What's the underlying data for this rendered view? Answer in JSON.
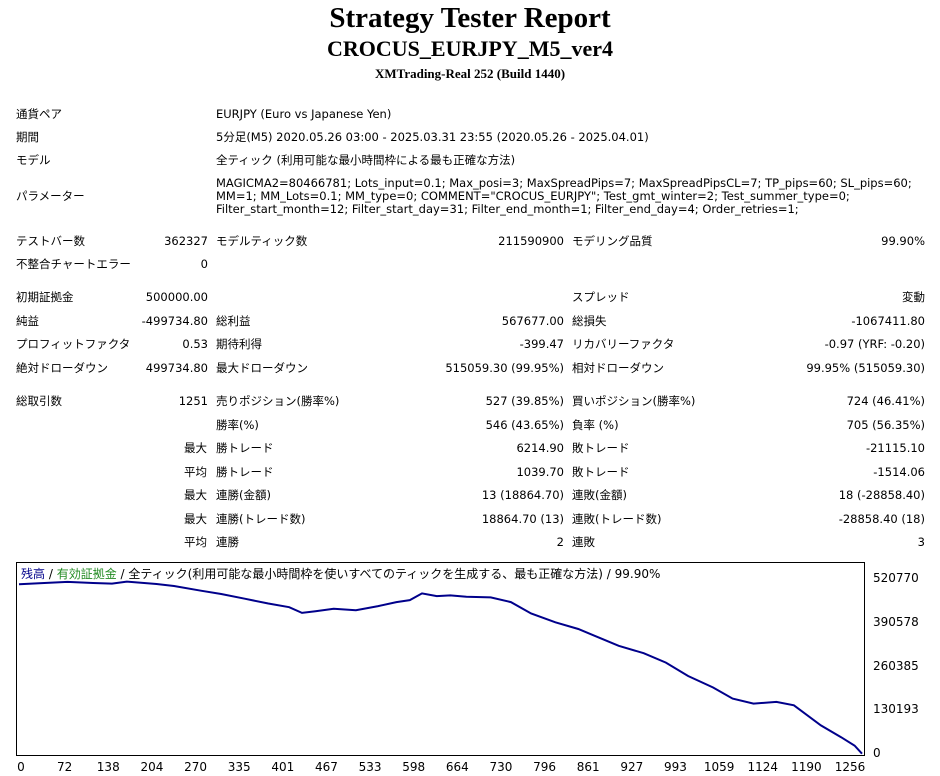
{
  "header": {
    "title": "Strategy Tester Report",
    "subtitle": "CROCUS_EURJPY_M5_ver4",
    "server": "XMTrading-Real 252 (Build 1440)"
  },
  "info": {
    "pair_label": "通貨ペア",
    "pair_value": "EURJPY (Euro vs Japanese Yen)",
    "period_label": "期間",
    "period_value": "5分足(M5) 2020.05.26 03:00 - 2025.03.31 23:55 (2020.05.26 - 2025.04.01)",
    "model_label": "モデル",
    "model_value": "全ティック (利用可能な最小時間枠による最も正確な方法)",
    "params_label": "パラメーター",
    "params_value": "MAGICMA2=80466781; Lots_input=0.1; Max_posi=3; MaxSpreadPips=7; MaxSpreadPipsCL=7; TP_pips=60; SL_pips=60; MM=1; MM_Lots=0.1; MM_type=0; COMMENT=\"CROCUS_EURJPY\"; Test_gmt_winter=2; Test_summer_type=0; Filter_start_month=12; Filter_start_day=31; Filter_end_month=1; Filter_end_day=4; Order_retries=1;"
  },
  "stats": {
    "bars_label": "テストバー数",
    "bars_value": "362327",
    "ticks_label": "モデルティック数",
    "ticks_value": "211590900",
    "quality_label": "モデリング品質",
    "quality_value": "99.90%",
    "mismatch_label": "不整合チャートエラー",
    "mismatch_value": "0",
    "deposit_label": "初期証拠金",
    "deposit_value": "500000.00",
    "spread_label": "スプレッド",
    "spread_value": "変動",
    "net_label": "純益",
    "net_value": "-499734.80",
    "gross_profit_label": "総利益",
    "gross_profit_value": "567677.00",
    "gross_loss_label": "総損失",
    "gross_loss_value": "-1067411.80",
    "pf_label": "プロフィットファクタ",
    "pf_value": "0.53",
    "expected_label": "期待利得",
    "expected_value": "-399.47",
    "recovery_label": "リカバリーファクタ",
    "recovery_value": "-0.97 (YRF: -0.20)",
    "abs_dd_label": "絶対ドローダウン",
    "abs_dd_value": "499734.80",
    "max_dd_label": "最大ドローダウン",
    "max_dd_value": "515059.30 (99.95%)",
    "rel_dd_label": "相対ドローダウン",
    "rel_dd_value": "99.95% (515059.30)",
    "trades_label": "総取引数",
    "trades_value": "1251",
    "short_label": "売りポジション(勝率%)",
    "short_value": "527 (39.85%)",
    "long_label": "買いポジション(勝率%)",
    "long_value": "724 (46.41%)",
    "winrate_label": "勝率(%)",
    "winrate_value": "546 (43.65%)",
    "lossrate_label": "負率 (%)",
    "lossrate_value": "705 (56.35%)",
    "max_label": "最大",
    "avg_label": "平均",
    "max_win_label": "勝トレード",
    "max_win_value": "6214.90",
    "max_loss_label": "敗トレード",
    "max_loss_value": "-21115.10",
    "avg_win_label": "勝トレード",
    "avg_win_value": "1039.70",
    "avg_loss_label": "敗トレード",
    "avg_loss_value": "-1514.06",
    "consec_win_label": "連勝(金額)",
    "consec_win_value": "13 (18864.70)",
    "consec_loss_label": "連敗(金額)",
    "consec_loss_value": "18 (-28858.40)",
    "consec_profit_label": "連勝(トレード数)",
    "consec_profit_value": "18864.70 (13)",
    "consec_lossamt_label": "連敗(トレード数)",
    "consec_lossamt_value": "-28858.40 (18)",
    "avg_consec_win_label": "連勝",
    "avg_consec_win_value": "2",
    "avg_consec_loss_label": "連敗",
    "avg_consec_loss_value": "3"
  },
  "legend": {
    "balance": "残高",
    "sep1": " / ",
    "equity": "有効証拠金",
    "sep2": " / ",
    "rest": "全ティック(利用可能な最小時間枠を使いすべてのティックを生成する、最も正確な方法) / 99.90%",
    "balance_color": "#00008b",
    "equity_color": "#228b22"
  },
  "chart_data": {
    "type": "line",
    "yticks": [
      "520770",
      "390578",
      "260385",
      "130193",
      "0"
    ],
    "xticks": [
      "0",
      "72",
      "138",
      "204",
      "270",
      "335",
      "401",
      "467",
      "533",
      "598",
      "664",
      "730",
      "796",
      "861",
      "927",
      "993",
      "1059",
      "1124",
      "1190",
      "1256"
    ],
    "ylim": [
      0,
      520770
    ],
    "xlim": [
      0,
      1251
    ],
    "series": [
      {
        "color": "#00008b",
        "x": [
          0,
          30,
          72,
          110,
          138,
          160,
          204,
          230,
          270,
          300,
          335,
          370,
          401,
          420,
          440,
          467,
          500,
          533,
          560,
          580,
          598,
          620,
          640,
          664,
          700,
          730,
          760,
          796,
          830,
          861,
          890,
          927,
          960,
          993,
          1030,
          1059,
          1090,
          1124,
          1150,
          1190,
          1220,
          1240,
          1251
        ],
        "y": [
          505000,
          508000,
          512000,
          509000,
          507000,
          513000,
          506000,
          500000,
          486000,
          476000,
          462000,
          448000,
          437000,
          420000,
          425000,
          432000,
          428000,
          440000,
          452000,
          458000,
          478000,
          470000,
          472000,
          468000,
          466000,
          452000,
          418000,
          392000,
          372000,
          346000,
          322000,
          300000,
          272000,
          232000,
          198000,
          165000,
          150000,
          155000,
          145000,
          85000,
          50000,
          25000,
          780
        ]
      }
    ]
  }
}
